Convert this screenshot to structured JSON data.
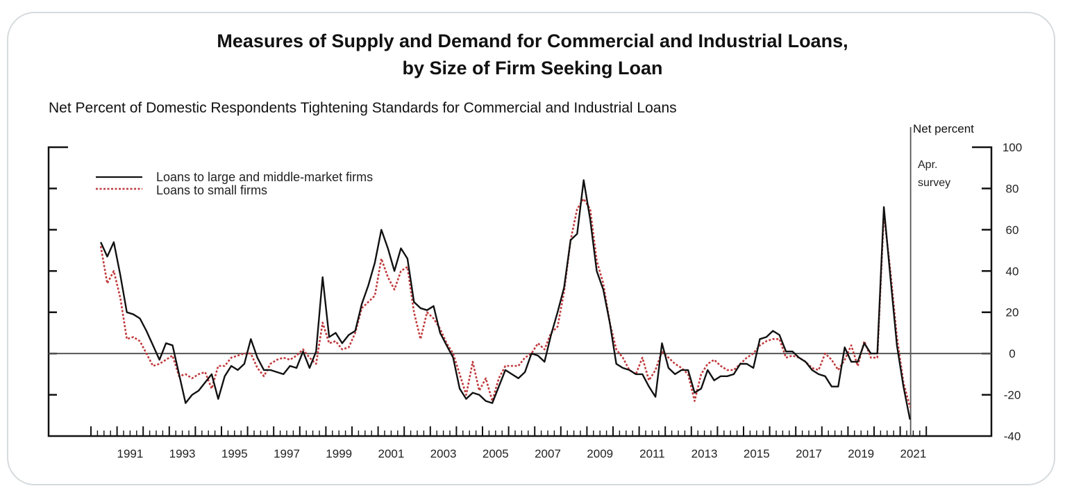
{
  "chart_data": {
    "type": "line",
    "title": "Measures of Supply and Demand for Commercial and Industrial Loans, by Size of Firm Seeking Loan",
    "title_lines": [
      "Measures of Supply and Demand for Commercial and Industrial Loans,",
      "by Size of Firm Seeking Loan"
    ],
    "subtitle": "Net Percent of Domestic Respondents Tightening Standards for Commercial and Industrial Loans",
    "ylabel": "Net percent",
    "xlabel": "",
    "ylim": [
      -40,
      100
    ],
    "yticks": [
      -40,
      -20,
      0,
      20,
      40,
      60,
      80,
      100
    ],
    "y_axis_side": "right",
    "xlim": [
      1990,
      2022
    ],
    "xtick_labels": [
      "1991",
      "1993",
      "1995",
      "1997",
      "1999",
      "2001",
      "2003",
      "2005",
      "2007",
      "2009",
      "2011",
      "2013",
      "2015",
      "2017",
      "2019",
      "2021"
    ],
    "x_frequency": "quarterly",
    "x_start": "1990Q2",
    "x_end": "2021Q2",
    "grid": false,
    "zero_line": true,
    "legend_position": "top-left",
    "annotation": {
      "text_lines": [
        "Apr.",
        "survey"
      ],
      "x": 2021.4
    },
    "series": [
      {
        "name": "Loans to large and middle-market firms",
        "style": "solid",
        "color": "#111111",
        "values": [
          54,
          47,
          54,
          38,
          20,
          19,
          17,
          11,
          4,
          -3,
          5,
          4,
          -10,
          -24,
          -20,
          -18,
          -14,
          -10,
          -22,
          -11,
          -6,
          -8,
          -5,
          7,
          -2,
          -8,
          -8,
          -9,
          -10,
          -6,
          -7,
          1,
          -7,
          1,
          37,
          8,
          10,
          5,
          9,
          11,
          24,
          33,
          44,
          60,
          51,
          40,
          51,
          46,
          25,
          22,
          21,
          23,
          10,
          4,
          -2,
          -17,
          -22,
          -19,
          -20,
          -23,
          -24,
          -16,
          -8,
          -10,
          -12,
          -9,
          0,
          -1,
          -4,
          9,
          20,
          32,
          55,
          58,
          84,
          65,
          40,
          31,
          15,
          -5,
          -7,
          -8,
          -10,
          -10,
          -16,
          -21,
          5,
          -7,
          -10,
          -8,
          -8,
          -19,
          -17,
          -8,
          -13,
          -11,
          -11,
          -10,
          -5,
          -5,
          -7,
          7,
          8,
          11,
          9,
          1,
          1,
          -2,
          -4,
          -8,
          -10,
          -11,
          -16,
          -16,
          3,
          -4,
          -4,
          5,
          0,
          0,
          71,
          37,
          4,
          -16,
          -32
        ]
      },
      {
        "name": "Loans to small firms",
        "style": "dotted",
        "color": "#c0393b",
        "values": [
          52,
          34,
          40,
          27,
          7,
          8,
          6,
          0,
          -6,
          -5,
          -3,
          -1,
          -11,
          -10,
          -12,
          -10,
          -9,
          -17,
          -6,
          -6,
          -2,
          -1,
          0,
          0,
          -7,
          -11,
          -5,
          -3,
          -2,
          -3,
          -1,
          2,
          -2,
          -5,
          15,
          5,
          6,
          2,
          3,
          10,
          22,
          25,
          28,
          46,
          37,
          31,
          40,
          42,
          20,
          7,
          20,
          17,
          12,
          5,
          0,
          -10,
          -20,
          -4,
          -18,
          -12,
          -23,
          -12,
          -6,
          -6,
          -6,
          -2,
          0,
          5,
          2,
          10,
          13,
          30,
          55,
          70,
          75,
          70,
          45,
          34,
          15,
          2,
          -2,
          -8,
          -10,
          -2,
          -13,
          -8,
          1,
          -2,
          -5,
          -7,
          -10,
          -23,
          -10,
          -5,
          -3,
          -6,
          -8,
          -8,
          -5,
          -2,
          0,
          4,
          6,
          7,
          7,
          -2,
          -1,
          -2,
          -4,
          -7,
          -8,
          0,
          -3,
          -8,
          -3,
          4,
          -6,
          6,
          -2,
          -2,
          68,
          40,
          8,
          -14,
          -26
        ]
      }
    ]
  }
}
